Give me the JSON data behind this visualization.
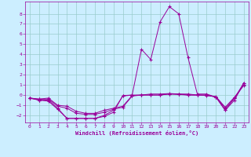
{
  "title": "",
  "xlabel": "Windchill (Refroidissement éolien,°C)",
  "background_color": "#cceeff",
  "grid_color": "#99cccc",
  "line_color": "#990099",
  "xlim": [
    -0.5,
    23.5
  ],
  "ylim": [
    -2.7,
    9.2
  ],
  "xticks": [
    0,
    1,
    2,
    3,
    4,
    5,
    6,
    7,
    8,
    9,
    10,
    11,
    12,
    13,
    14,
    15,
    16,
    17,
    18,
    19,
    20,
    21,
    22,
    23
  ],
  "yticks": [
    -2,
    -1,
    0,
    1,
    2,
    3,
    4,
    5,
    6,
    7,
    8
  ],
  "hours": [
    0,
    1,
    2,
    3,
    4,
    5,
    6,
    7,
    8,
    9,
    10,
    11,
    12,
    13,
    14,
    15,
    16,
    17,
    18,
    19,
    20,
    21,
    22,
    23
  ],
  "line1": [
    -0.3,
    -0.5,
    -0.5,
    -1.3,
    -2.3,
    -2.3,
    -2.3,
    -2.3,
    -2.0,
    -1.5,
    -0.1,
    0.0,
    0.0,
    0.1,
    0.1,
    0.15,
    0.1,
    0.1,
    0.0,
    0.0,
    -0.2,
    -1.5,
    -0.3,
    1.2
  ],
  "line2": [
    -0.3,
    -0.4,
    -0.4,
    -1.1,
    -1.3,
    -1.8,
    -1.9,
    -1.9,
    -1.7,
    -1.4,
    -1.2,
    -0.1,
    0.0,
    0.0,
    0.0,
    0.1,
    0.1,
    0.0,
    0.0,
    0.0,
    -0.2,
    -1.3,
    -0.3,
    1.0
  ],
  "line3": [
    -0.3,
    -0.4,
    -0.3,
    -1.0,
    -1.1,
    -1.6,
    -1.8,
    -1.8,
    -1.5,
    -1.3,
    -1.1,
    -0.05,
    0.0,
    0.0,
    0.0,
    0.1,
    0.05,
    0.0,
    0.0,
    -0.05,
    -0.15,
    -1.2,
    -0.2,
    0.95
  ],
  "line4": [
    -0.3,
    -0.5,
    -0.6,
    -1.4,
    -2.3,
    -2.3,
    -2.3,
    -2.3,
    -2.1,
    -1.7,
    -0.05,
    0.0,
    4.5,
    3.5,
    7.2,
    8.7,
    8.0,
    3.7,
    0.1,
    0.1,
    -0.2,
    -1.5,
    -0.5,
    1.2
  ]
}
